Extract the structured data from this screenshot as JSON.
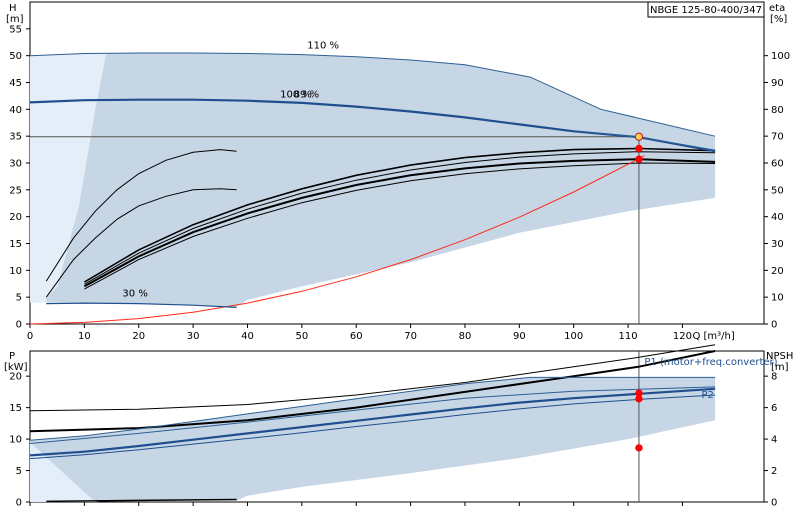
{
  "title_box": "NBGE 125-80-400/347",
  "colors": {
    "band": "#c7d6e5",
    "band_light": "#e4eef8",
    "band_edge": "#2d5f93",
    "curve_blue": "#1f4f8f",
    "system_curve": "#ff2a1a",
    "duty_point": "#ff0000",
    "duty_fill": "#ffd24a",
    "black": "#000000"
  },
  "chart_data": [
    {
      "type": "line",
      "name": "head",
      "xlabel": "Q [m³/h]",
      "ylabel_left": "H",
      "ylabel_left_unit": "[m]",
      "ylabel_right": "eta",
      "ylabel_right_unit": "[%]",
      "xlim": [
        0,
        135
      ],
      "ylim": [
        0,
        60
      ],
      "y2lim": [
        0,
        120
      ],
      "x_ticks": [
        0,
        10,
        20,
        30,
        40,
        50,
        60,
        70,
        80,
        90,
        100,
        110,
        120
      ],
      "y_ticks": [
        0,
        5,
        10,
        15,
        20,
        25,
        30,
        35,
        40,
        45,
        50,
        55
      ],
      "y2_ticks": [
        0,
        10,
        20,
        30,
        40,
        50,
        60,
        70,
        80,
        90,
        100
      ],
      "band": [
        [
          0,
          50
        ],
        [
          10,
          50.4
        ],
        [
          20,
          50.5
        ],
        [
          30,
          50.5
        ],
        [
          40,
          50.4
        ],
        [
          50,
          50.2
        ],
        [
          60,
          49.8
        ],
        [
          70,
          49.2
        ],
        [
          80,
          48.3
        ],
        [
          92,
          46
        ],
        [
          105,
          40
        ],
        [
          126,
          35
        ],
        [
          126,
          23.5
        ],
        [
          110,
          21
        ],
        [
          90,
          17
        ],
        [
          70,
          11.5
        ],
        [
          50,
          7
        ],
        [
          40,
          4.5
        ],
        [
          38,
          3.2
        ],
        [
          30,
          3.6
        ],
        [
          20,
          3.9
        ],
        [
          10,
          4
        ],
        [
          3,
          4
        ],
        [
          3,
          4.8
        ],
        [
          5,
          7
        ],
        [
          9,
          22
        ],
        [
          12,
          40
        ],
        [
          14,
          50.4
        ]
      ],
      "band_light": [
        [
          0,
          50
        ],
        [
          14,
          50.4
        ],
        [
          12,
          40
        ],
        [
          9,
          22
        ],
        [
          5,
          7
        ],
        [
          3,
          4.8
        ],
        [
          3,
          4
        ],
        [
          0,
          4
        ]
      ],
      "series": [
        {
          "name": "110 %",
          "label": "110 %",
          "label_x": 51,
          "label_y": 51.3,
          "width": 1,
          "color": "band_edge",
          "points": [
            [
              0,
              50
            ],
            [
              10,
              50.4
            ],
            [
              20,
              50.5
            ],
            [
              30,
              50.5
            ],
            [
              40,
              50.4
            ],
            [
              50,
              50.2
            ],
            [
              60,
              49.8
            ],
            [
              70,
              49.2
            ],
            [
              80,
              48.3
            ],
            [
              92,
              46
            ],
            [
              105,
              40
            ],
            [
              126,
              35
            ]
          ]
        },
        {
          "name": "100 %",
          "label": "100 %",
          "label_x": 46,
          "label_y": 42.2,
          "width": 2.2,
          "color": "curve_blue",
          "points": [
            [
              0,
              41.3
            ],
            [
              10,
              41.7
            ],
            [
              20,
              41.8
            ],
            [
              30,
              41.8
            ],
            [
              40,
              41.6
            ],
            [
              50,
              41.2
            ],
            [
              60,
              40.5
            ],
            [
              70,
              39.6
            ],
            [
              80,
              38.5
            ],
            [
              90,
              37.2
            ],
            [
              100,
              35.9
            ],
            [
              112,
              34.8
            ],
            [
              126,
              32.2
            ]
          ]
        },
        {
          "name": "89 %",
          "label": "89 %",
          "label_x": 48.5,
          "label_y": 42.2,
          "width": 1,
          "color": "band_edge",
          "points": [
            [
              100,
              36
            ],
            [
              112,
              34.8
            ],
            [
              126,
              32.4
            ]
          ]
        },
        {
          "name": "30 %",
          "label": "30 %",
          "label_x": 17,
          "label_y": 5.1,
          "width": 1.2,
          "color": "curve_blue",
          "points": [
            [
              3,
              3.8
            ],
            [
              10,
              3.9
            ],
            [
              20,
              3.8
            ],
            [
              30,
              3.5
            ],
            [
              38,
              3.1
            ]
          ]
        }
      ],
      "efficiency_curves": [
        {
          "name": "eta-a",
          "width": 1,
          "points": [
            [
              3,
              8
            ],
            [
              8,
              16
            ],
            [
              12,
              21
            ],
            [
              16,
              25
            ],
            [
              20,
              28
            ],
            [
              25,
              30.5
            ],
            [
              30,
              32
            ],
            [
              35,
              32.5
            ],
            [
              38,
              32.2
            ]
          ]
        },
        {
          "name": "eta-b",
          "width": 1,
          "points": [
            [
              3,
              5
            ],
            [
              8,
              12
            ],
            [
              12,
              16
            ],
            [
              16,
              19.5
            ],
            [
              20,
              22
            ],
            [
              25,
              23.8
            ],
            [
              30,
              25
            ],
            [
              35,
              25.2
            ],
            [
              38,
              25
            ]
          ]
        },
        {
          "name": "eta-c",
          "width": 1.6,
          "points": [
            [
              10,
              7.8
            ],
            [
              20,
              13.8
            ],
            [
              30,
              18.5
            ],
            [
              40,
              22.2
            ],
            [
              50,
              25.2
            ],
            [
              60,
              27.7
            ],
            [
              70,
              29.6
            ],
            [
              80,
              31
            ],
            [
              90,
              31.9
            ],
            [
              100,
              32.5
            ],
            [
              112,
              32.7
            ],
            [
              126,
              32.3
            ]
          ]
        },
        {
          "name": "eta-d",
          "width": 1,
          "points": [
            [
              10,
              7.4
            ],
            [
              20,
              13.2
            ],
            [
              30,
              17.8
            ],
            [
              40,
              21.4
            ],
            [
              50,
              24.4
            ],
            [
              60,
              26.8
            ],
            [
              70,
              28.7
            ],
            [
              80,
              30.1
            ],
            [
              90,
              31.1
            ],
            [
              100,
              31.7
            ],
            [
              112,
              32.1
            ],
            [
              126,
              31.9
            ]
          ]
        },
        {
          "name": "eta-e",
          "width": 2,
          "points": [
            [
              10,
              7
            ],
            [
              20,
              12.6
            ],
            [
              30,
              17.1
            ],
            [
              40,
              20.6
            ],
            [
              50,
              23.5
            ],
            [
              60,
              25.9
            ],
            [
              70,
              27.7
            ],
            [
              80,
              29
            ],
            [
              90,
              29.9
            ],
            [
              100,
              30.4
            ],
            [
              112,
              30.7
            ],
            [
              126,
              30.2
            ]
          ]
        },
        {
          "name": "eta-f",
          "width": 1,
          "points": [
            [
              10,
              6.5
            ],
            [
              20,
              12
            ],
            [
              30,
              16.3
            ],
            [
              40,
              19.7
            ],
            [
              50,
              22.6
            ],
            [
              60,
              24.9
            ],
            [
              70,
              26.7
            ],
            [
              80,
              28
            ],
            [
              90,
              28.9
            ],
            [
              100,
              29.5
            ],
            [
              112,
              30
            ],
            [
              126,
              29.9
            ]
          ]
        }
      ],
      "system_curve": [
        [
          0,
          0
        ],
        [
          10,
          0.3
        ],
        [
          20,
          1
        ],
        [
          30,
          2.2
        ],
        [
          40,
          3.9
        ],
        [
          50,
          6.1
        ],
        [
          60,
          8.8
        ],
        [
          70,
          12
        ],
        [
          80,
          15.7
        ],
        [
          90,
          19.9
        ],
        [
          100,
          24.6
        ],
        [
          112,
          30.8
        ],
        [
          113,
          31.4
        ]
      ],
      "duty_point": {
        "q": 112,
        "h": 34.9
      },
      "duty_markers": [
        [
          112,
          34.9
        ],
        [
          112,
          32.7
        ],
        [
          112,
          30.7
        ]
      ]
    },
    {
      "type": "line",
      "name": "power-npsh",
      "ylabel_left": "P",
      "ylabel_left_unit": "[kW]",
      "ylabel_right": "NPSH",
      "ylabel_right_unit": "[m]",
      "xlim": [
        0,
        135
      ],
      "ylim": [
        0,
        24
      ],
      "y2lim": [
        0,
        9.6
      ],
      "y_ticks": [
        0,
        5,
        10,
        15,
        20
      ],
      "y2_ticks": [
        0,
        2,
        4,
        6,
        8
      ],
      "band": [
        [
          0,
          9.8
        ],
        [
          10,
          10.5
        ],
        [
          20,
          11.6
        ],
        [
          30,
          12.8
        ],
        [
          40,
          14
        ],
        [
          50,
          15.2
        ],
        [
          60,
          16.4
        ],
        [
          70,
          17.6
        ],
        [
          80,
          18.8
        ],
        [
          92,
          19.8
        ],
        [
          126,
          19.8
        ],
        [
          126,
          13
        ],
        [
          110,
          10
        ],
        [
          90,
          7
        ],
        [
          70,
          4.6
        ],
        [
          50,
          2.4
        ],
        [
          40,
          1
        ],
        [
          38,
          0.2
        ],
        [
          30,
          0.25
        ],
        [
          15,
          0.3
        ],
        [
          12,
          0
        ],
        [
          0,
          0
        ]
      ],
      "band_light": [
        [
          0,
          9.5
        ],
        [
          12,
          0
        ],
        [
          0,
          0
        ]
      ],
      "series": [
        {
          "name": "P1 top",
          "width": 1,
          "color": "band_edge",
          "points": [
            [
              0,
              9.8
            ],
            [
              10,
              10.5
            ],
            [
              20,
              11.6
            ],
            [
              30,
              12.8
            ],
            [
              40,
              14
            ],
            [
              50,
              15.2
            ],
            [
              60,
              16.4
            ],
            [
              70,
              17.6
            ],
            [
              80,
              18.8
            ],
            [
              92,
              19.8
            ],
            [
              126,
              19.8
            ]
          ]
        },
        {
          "name": "P1 110",
          "width": 1,
          "color": "band_edge",
          "points": [
            [
              0,
              9.3
            ],
            [
              20,
              10.9
            ],
            [
              40,
              12.7
            ],
            [
              60,
              14.6
            ],
            [
              80,
              16.5
            ],
            [
              100,
              17.6
            ],
            [
              126,
              18.3
            ]
          ]
        },
        {
          "name": "P1 (motor+freq.converter)",
          "label": "P1 (motor+freq.converter)",
          "label_x": 113,
          "label_y": 21.8,
          "width": 2.2,
          "color": "curve_blue",
          "points": [
            [
              0,
              7.4
            ],
            [
              10,
              8
            ],
            [
              20,
              8.9
            ],
            [
              30,
              9.9
            ],
            [
              40,
              10.9
            ],
            [
              50,
              11.9
            ],
            [
              60,
              12.9
            ],
            [
              70,
              13.9
            ],
            [
              80,
              14.9
            ],
            [
              90,
              15.8
            ],
            [
              100,
              16.5
            ],
            [
              112,
              17.2
            ],
            [
              126,
              18
            ]
          ]
        },
        {
          "name": "P2",
          "label": "P2",
          "label_x": 123.5,
          "label_y": 16.5,
          "width": 1,
          "color": "curve_blue",
          "points": [
            [
              0,
              6.9
            ],
            [
              10,
              7.5
            ],
            [
              20,
              8.3
            ],
            [
              30,
              9.2
            ],
            [
              40,
              10.1
            ],
            [
              50,
              11
            ],
            [
              60,
              12
            ],
            [
              70,
              12.9
            ],
            [
              80,
              13.9
            ],
            [
              90,
              14.8
            ],
            [
              100,
              15.6
            ],
            [
              112,
              16.3
            ],
            [
              126,
              17
            ]
          ]
        },
        {
          "name": "P 30",
          "width": 1.5,
          "color": "black",
          "points": [
            [
              3,
              0.1
            ],
            [
              20,
              0.25
            ],
            [
              38,
              0.4
            ]
          ]
        }
      ],
      "npsh_curves": [
        {
          "name": "npsh-a",
          "width": 1,
          "points": [
            [
              0,
              5.8
            ],
            [
              20,
              5.9
            ],
            [
              40,
              6.2
            ],
            [
              60,
              6.8
            ],
            [
              80,
              7.6
            ],
            [
              100,
              8.6
            ],
            [
              112,
              9.2
            ],
            [
              126,
              10
            ]
          ]
        },
        {
          "name": "npsh-b",
          "width": 2,
          "points": [
            [
              0,
              4.5
            ],
            [
              20,
              4.7
            ],
            [
              40,
              5.2
            ],
            [
              60,
              6
            ],
            [
              80,
              7
            ],
            [
              100,
              8
            ],
            [
              112,
              8.6
            ],
            [
              126,
              9.6
            ]
          ]
        }
      ],
      "duty_markers": [
        [
          112,
          17.3
        ],
        [
          112,
          16.4
        ],
        [
          112,
          8.6
        ]
      ]
    }
  ]
}
